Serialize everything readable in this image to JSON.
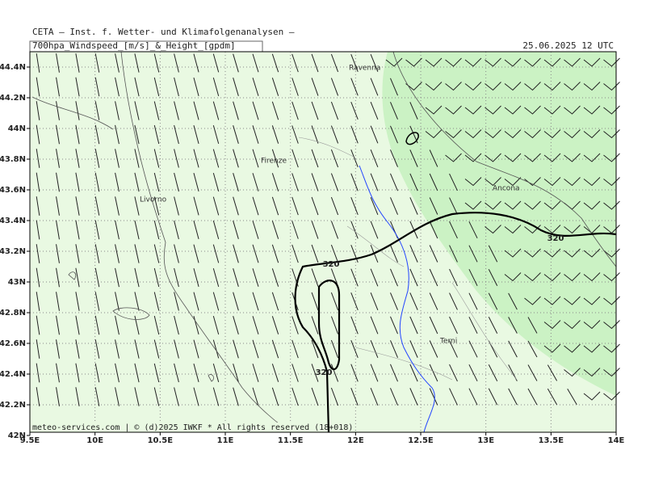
{
  "header": {
    "institute": "CETA – Inst. f. Wetter- und Klimafolgenanalysen –",
    "product": "700hpa_Windspeed_[m/s]_&_Height_[gpdm]",
    "valid": "25.06.2025 12 UTC"
  },
  "map": {
    "lat_labels": [
      "44.4N",
      "44.2N",
      "44N",
      "43.8N",
      "43.6N",
      "43.4N",
      "43.2N",
      "43N",
      "42.8N",
      "42.6N",
      "42.4N",
      "42.2N",
      "42N"
    ],
    "lon_labels": [
      "9.5E",
      "10E",
      "10.5E",
      "11E",
      "11.5E",
      "12E",
      "12.5E",
      "13E",
      "13.5E",
      "14E"
    ],
    "cities": [
      "Ravenna",
      "Firenze",
      "Livorno",
      "Ancona",
      "Terni"
    ],
    "contour_labels": [
      "320",
      "320",
      "320"
    ]
  },
  "footer": "meteo-services.com | © (d)2025 IWKF * All rights reserved (18+018)"
}
